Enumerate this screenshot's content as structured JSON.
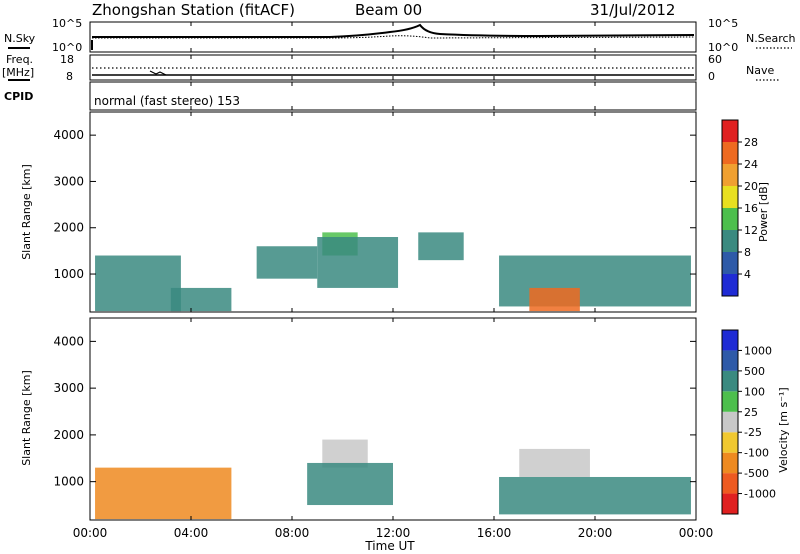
{
  "header": {
    "station": "Zhongshan Station (fitACF)",
    "beam": "Beam 00",
    "date": "31/Jul/2012"
  },
  "panel_noise": {
    "left_label": "N.Sky",
    "right_label": "N.Search",
    "left_ticks": [
      "10^5",
      "10^0"
    ],
    "right_ticks": [
      "10^5",
      "10^0"
    ]
  },
  "panel_freq": {
    "left_label_1": "Freq.",
    "left_label_2": "[MHz]",
    "right_label": "Nave",
    "left_ticks": [
      "18",
      "8"
    ],
    "right_ticks": [
      "60",
      "0"
    ]
  },
  "panel_cpid": {
    "label": "CPID",
    "text": "normal (fast stereo) 153"
  },
  "axes": {
    "ylabel": "Slant Range [km]",
    "xlabel": "Time UT",
    "yticks": [
      "1000",
      "2000",
      "3000",
      "4000"
    ],
    "xticks": [
      "00:00",
      "04:00",
      "08:00",
      "12:00",
      "16:00",
      "20:00",
      "00:00"
    ]
  },
  "power_colorbar": {
    "title": "Power [dB]",
    "ticks": [
      "4",
      "8",
      "12",
      "16",
      "20",
      "24",
      "28"
    ],
    "colors": [
      "#1f2bd4",
      "#2e5aa8",
      "#3a8a80",
      "#4dbf4d",
      "#e8e020",
      "#f0a030",
      "#ee6a20",
      "#e02020"
    ]
  },
  "velocity_colorbar": {
    "title": "Velocity [m s⁻¹]",
    "ticks": [
      "1000",
      "500",
      "100",
      "25",
      "-25",
      "-100",
      "-500",
      "-1000"
    ],
    "colors": [
      "#1f2bd4",
      "#2e5aa8",
      "#3a8a80",
      "#4dbf4d",
      "#c8c8c8",
      "#f0c830",
      "#ee8a20",
      "#ee5a20",
      "#e02020"
    ]
  },
  "chart_data": {
    "type": "heatmap",
    "x_range_hours": [
      0,
      24
    ],
    "y_range_km": [
      180,
      4500
    ],
    "power_regions": [
      {
        "t0": 0.2,
        "t1": 3.6,
        "r0": 200,
        "r1": 1400,
        "value": 8
      },
      {
        "t0": 3.2,
        "t1": 5.6,
        "r0": 200,
        "r1": 700,
        "value": 10
      },
      {
        "t0": 6.6,
        "t1": 9.0,
        "r0": 900,
        "r1": 1600,
        "value": 8
      },
      {
        "t0": 9.2,
        "t1": 10.6,
        "r0": 1400,
        "r1": 1900,
        "value": 14
      },
      {
        "t0": 9.0,
        "t1": 12.2,
        "r0": 700,
        "r1": 1800,
        "value": 8
      },
      {
        "t0": 13.0,
        "t1": 14.8,
        "r0": 1300,
        "r1": 1900,
        "value": 8
      },
      {
        "t0": 16.2,
        "t1": 23.8,
        "r0": 300,
        "r1": 1400,
        "value": 10
      },
      {
        "t0": 17.4,
        "t1": 19.4,
        "r0": 200,
        "r1": 700,
        "value": 26
      }
    ],
    "velocity_regions": [
      {
        "t0": 0.2,
        "t1": 5.6,
        "r0": 200,
        "r1": 1300,
        "value": -300
      },
      {
        "t0": 9.2,
        "t1": 11.0,
        "r0": 1300,
        "r1": 1900,
        "value": 0
      },
      {
        "t0": 8.6,
        "t1": 12.0,
        "r0": 500,
        "r1": 1400,
        "value": 200
      },
      {
        "t0": 16.2,
        "t1": 23.8,
        "r0": 300,
        "r1": 1100,
        "value": 100
      },
      {
        "t0": 17.0,
        "t1": 19.8,
        "r0": 1100,
        "r1": 1700,
        "value": 0
      }
    ]
  }
}
